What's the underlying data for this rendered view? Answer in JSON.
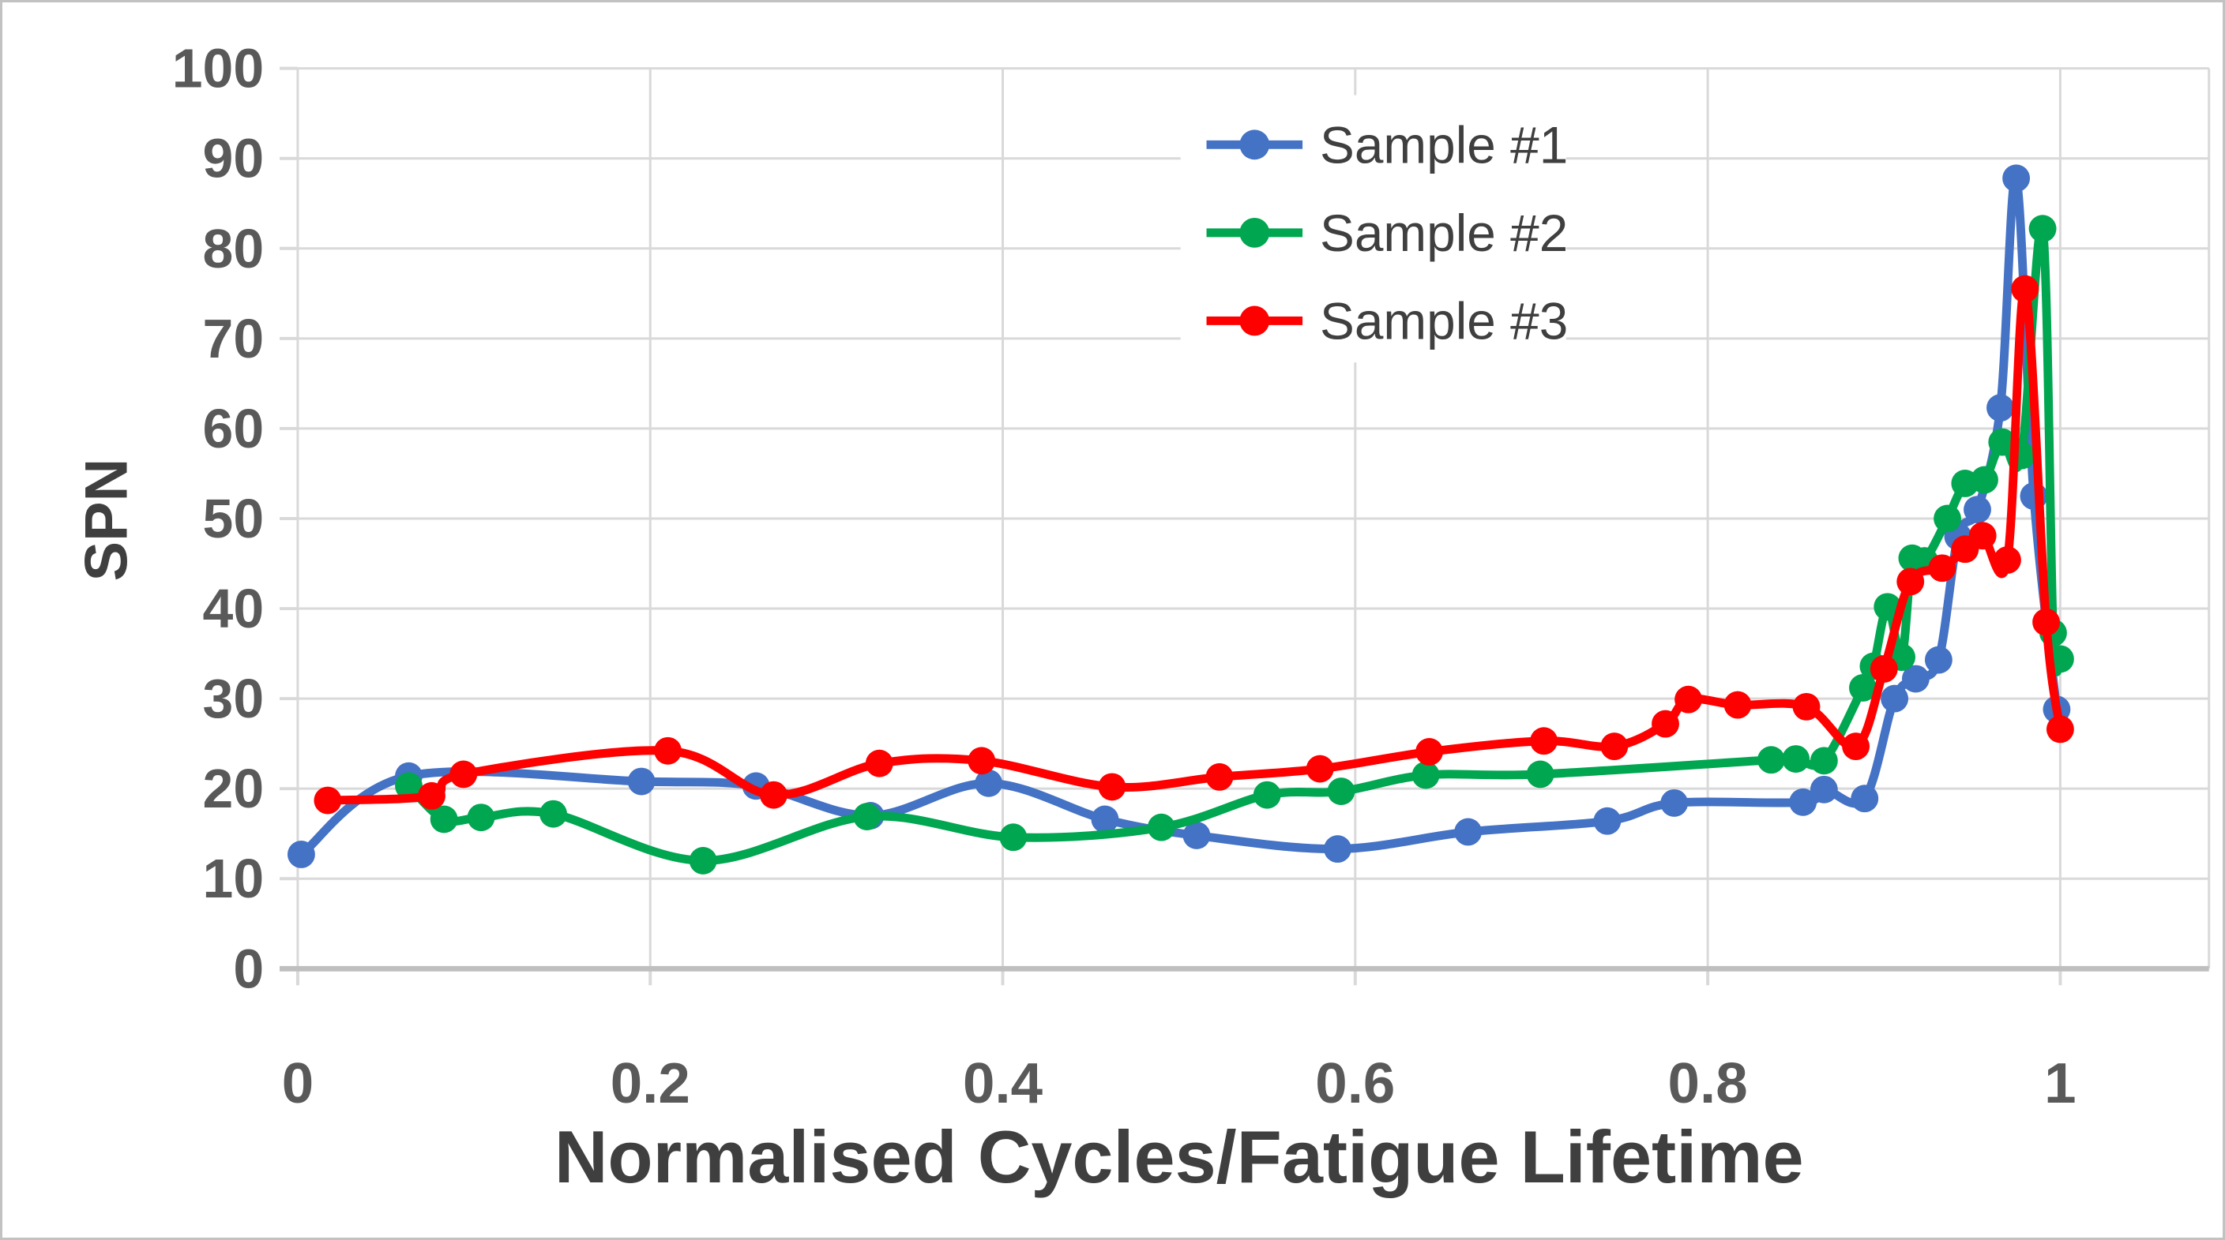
{
  "figure": {
    "x_axis_title": "Normalised Cycles/Fatigue Lifetime",
    "y_axis_title": "SPN"
  },
  "axes": {
    "y_ticks": [
      0,
      10,
      20,
      30,
      40,
      50,
      60,
      70,
      80,
      90,
      100
    ],
    "x_ticks": [
      0,
      0.2,
      0.4,
      0.6,
      0.8,
      1
    ],
    "x_tick_labels": [
      "0",
      "0.2",
      "0.4",
      "0.6",
      "0.8",
      "1"
    ]
  },
  "legend": {
    "items": [
      "Sample #1",
      "Sample #2",
      "Sample #3"
    ]
  },
  "colors": {
    "sample1": "#4472C4",
    "sample2": "#00A650",
    "sample3": "#FF0000",
    "gridline": "#D9D9D9",
    "axis_line": "#BFBFBF",
    "tick_text": "#595959",
    "title_text": "#3F3F3F",
    "border": "#C2C2C2"
  },
  "chart_data": {
    "type": "line",
    "title": "",
    "xlabel": "Normalised Cycles/Fatigue Lifetime",
    "ylabel": "SPN",
    "xlim": [
      0,
      1.085
    ],
    "ylim": [
      0,
      100
    ],
    "grid": true,
    "smooth": true,
    "marker": "circle",
    "legend_position": "inside-top-center",
    "series": [
      {
        "name": "Sample #1",
        "color": "#4472C4",
        "points": [
          [
            0.002,
            12.7
          ],
          [
            0.063,
            21.4
          ],
          [
            0.195,
            20.8
          ],
          [
            0.26,
            20.3
          ],
          [
            0.325,
            17.0
          ],
          [
            0.392,
            20.6
          ],
          [
            0.458,
            16.6
          ],
          [
            0.51,
            14.8
          ],
          [
            0.59,
            13.3
          ],
          [
            0.664,
            15.2
          ],
          [
            0.743,
            16.4
          ],
          [
            0.781,
            18.4
          ],
          [
            0.854,
            18.5
          ],
          [
            0.866,
            19.9
          ],
          [
            0.889,
            18.9
          ],
          [
            0.906,
            30.0
          ],
          [
            0.918,
            32.2
          ],
          [
            0.931,
            34.3
          ],
          [
            0.942,
            48.0
          ],
          [
            0.953,
            51.0
          ],
          [
            0.966,
            62.3
          ],
          [
            0.975,
            87.8
          ],
          [
            0.985,
            52.5
          ],
          [
            0.998,
            28.8
          ]
        ]
      },
      {
        "name": "Sample #2",
        "color": "#00A650",
        "points": [
          [
            0.063,
            20.3
          ],
          [
            0.083,
            16.6
          ],
          [
            0.104,
            16.8
          ],
          [
            0.145,
            17.2
          ],
          [
            0.23,
            12.0
          ],
          [
            0.323,
            16.9
          ],
          [
            0.406,
            14.6
          ],
          [
            0.49,
            15.7
          ],
          [
            0.55,
            19.3
          ],
          [
            0.592,
            19.7
          ],
          [
            0.64,
            21.5
          ],
          [
            0.705,
            21.6
          ],
          [
            0.836,
            23.2
          ],
          [
            0.85,
            23.3
          ],
          [
            0.866,
            23.1
          ],
          [
            0.888,
            31.2
          ],
          [
            0.894,
            33.6
          ],
          [
            0.902,
            40.2
          ],
          [
            0.91,
            34.6
          ],
          [
            0.916,
            45.6
          ],
          [
            0.923,
            45.3
          ],
          [
            0.936,
            50.0
          ],
          [
            0.946,
            53.9
          ],
          [
            0.957,
            54.3
          ],
          [
            0.967,
            58.5
          ],
          [
            0.978,
            57.0
          ],
          [
            0.99,
            82.2
          ],
          [
            0.996,
            37.3
          ],
          [
            1.0,
            34.4
          ]
        ]
      },
      {
        "name": "Sample #3",
        "color": "#FF0000",
        "points": [
          [
            0.017,
            18.7
          ],
          [
            0.076,
            19.2
          ],
          [
            0.094,
            21.6
          ],
          [
            0.21,
            24.2
          ],
          [
            0.27,
            19.3
          ],
          [
            0.33,
            22.8
          ],
          [
            0.388,
            23.1
          ],
          [
            0.462,
            20.2
          ],
          [
            0.523,
            21.3
          ],
          [
            0.58,
            22.2
          ],
          [
            0.642,
            24.1
          ],
          [
            0.707,
            25.3
          ],
          [
            0.747,
            24.7
          ],
          [
            0.776,
            27.2
          ],
          [
            0.789,
            29.9
          ],
          [
            0.817,
            29.3
          ],
          [
            0.856,
            29.1
          ],
          [
            0.884,
            24.7
          ],
          [
            0.9,
            33.3
          ],
          [
            0.915,
            43.0
          ],
          [
            0.933,
            44.5
          ],
          [
            0.946,
            46.6
          ],
          [
            0.956,
            48.1
          ],
          [
            0.97,
            45.4
          ],
          [
            0.98,
            75.5
          ],
          [
            0.992,
            38.5
          ],
          [
            1.0,
            26.6
          ]
        ]
      }
    ]
  }
}
